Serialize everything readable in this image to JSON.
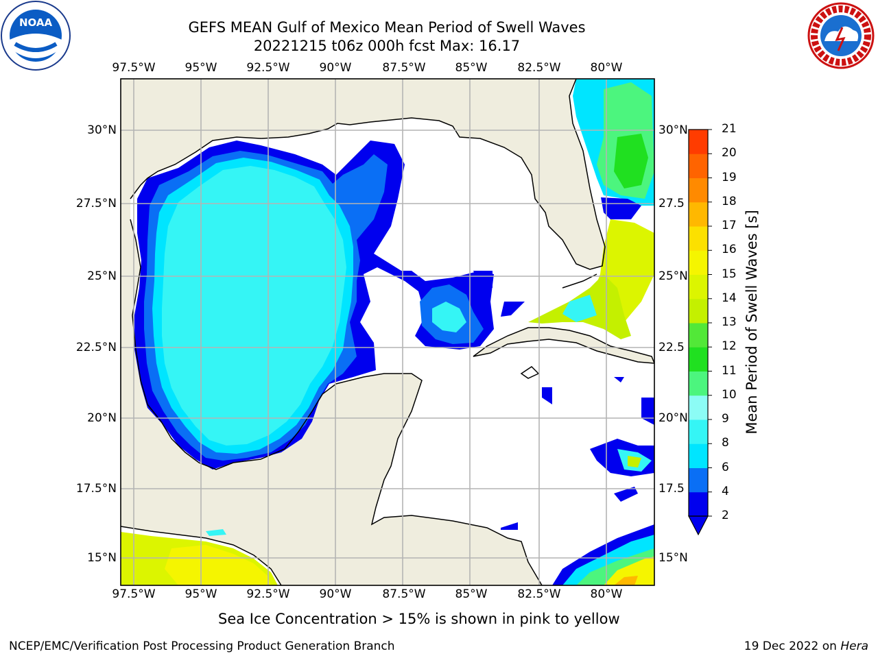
{
  "title": "GEFS MEAN Gulf of Mexico Mean Period of Swell Waves",
  "subtitle": "20221215 t06z 000h fcst   Max: 16.17",
  "lon_labels": [
    "97.5°W",
    "95°W",
    "92.5°W",
    "90°W",
    "87.5°W",
    "85°W",
    "82.5°W",
    "80°W"
  ],
  "lat_labels_left": [
    "30°N",
    "27.5°N",
    "25°N",
    "22.5°N",
    "20°N",
    "17.5°N",
    "15°N"
  ],
  "lat_labels_right": [
    "30°N",
    "27.5",
    "25°N",
    "22.5",
    "20°N",
    "17.5",
    "15°N"
  ],
  "colorbar": {
    "label": "Mean Period of Swell Waves [s]",
    "ticks": [
      "2",
      "4",
      "6",
      "8",
      "9",
      "10",
      "11",
      "12",
      "13",
      "14",
      "15",
      "16",
      "17",
      "18",
      "19",
      "20",
      "21"
    ],
    "colors": [
      "#0000ee",
      "#0a6ff5",
      "#00e5ff",
      "#35f5f5",
      "#8cfcf5",
      "#4cf57e",
      "#20e020",
      "#52e838",
      "#c4f000",
      "#dcf500",
      "#f5f500",
      "#fce000",
      "#ffb800",
      "#ff8a00",
      "#ff6400",
      "#ff3c00",
      "#ff0000"
    ]
  },
  "map_colors": {
    "land": "#efedde",
    "ocean": "#ffffff",
    "grid": "#b4b4b4",
    "coast": "#000000"
  },
  "note": "Sea Ice Concentration > 15% is shown in pink to yellow",
  "footer_left": "NCEP/EMC/Verification Post Processing Product Generation Branch",
  "footer_right_prefix": "19 Dec 2022 on ",
  "footer_right_host": "Hera",
  "logos": {
    "noaa": "NOAA",
    "nws": "NATIONAL WEATHER SERVICE"
  }
}
